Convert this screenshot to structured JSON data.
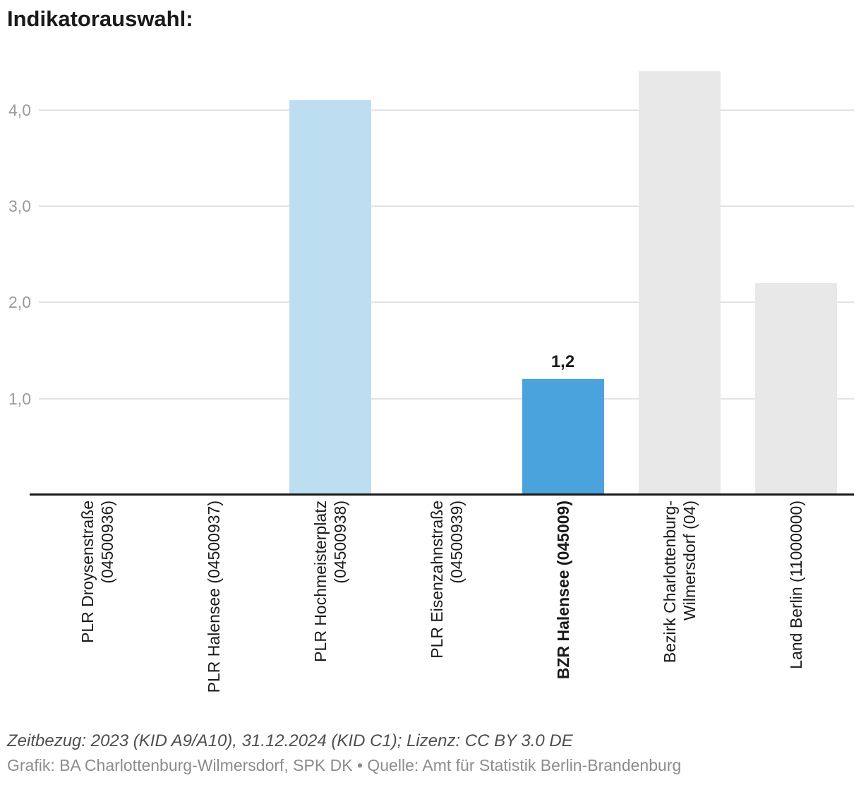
{
  "title": "Indikatorauswahl:",
  "chart_data": {
    "type": "bar",
    "title": "Indikatorauswahl:",
    "categories": [
      [
        "PLR Droysenstraße",
        "(04500936)"
      ],
      [
        "PLR Halensee (04500937)"
      ],
      [
        "PLR Hochmeisterplatz",
        "(04500938)"
      ],
      [
        "PLR Eisenzahnstraße",
        "(04500939)"
      ],
      [
        "BZR Halensee (045009)"
      ],
      [
        "Bezirk Charlottenburg-",
        "Wilmersdorf (04)"
      ],
      [
        "Land Berlin (11000000)"
      ]
    ],
    "values": [
      0,
      0,
      4.1,
      0,
      1.2,
      4.4,
      2.2
    ],
    "value_labels": [
      "",
      "",
      "",
      "",
      "1,2",
      "",
      ""
    ],
    "emphasized": [
      false,
      false,
      false,
      false,
      true,
      false,
      false
    ],
    "bar_colors": [
      null,
      null,
      "#bddef1",
      null,
      "#4aa3dc",
      "#e8e8e8",
      "#e8e8e8"
    ],
    "y_ticks": [
      {
        "value": 1,
        "label": "1,0"
      },
      {
        "value": 2,
        "label": "2,0"
      },
      {
        "value": 3,
        "label": "3,0"
      },
      {
        "value": 4,
        "label": "4,0"
      }
    ],
    "ylim": [
      0,
      4.55
    ],
    "grid": true,
    "legend": "none",
    "colors": {
      "highlight": "#4aa3dc",
      "comparison": "#bddef1",
      "reference": "#e8e8e8",
      "gridline": "#e4e4e4",
      "axis": "#1a1a1a",
      "tick_text": "#9a9a9a",
      "label_text": "#1a1a1a"
    }
  },
  "footer": {
    "line1": "Zeitbezug: 2023 (KID A9/A10), 31.12.2024 (KID C1); Lizenz: CC BY 3.0 DE",
    "line2": "Grafik: BA Charlottenburg-Wilmersdorf, SPK DK • Quelle: Amt für Statistik Berlin-Brandenburg"
  }
}
